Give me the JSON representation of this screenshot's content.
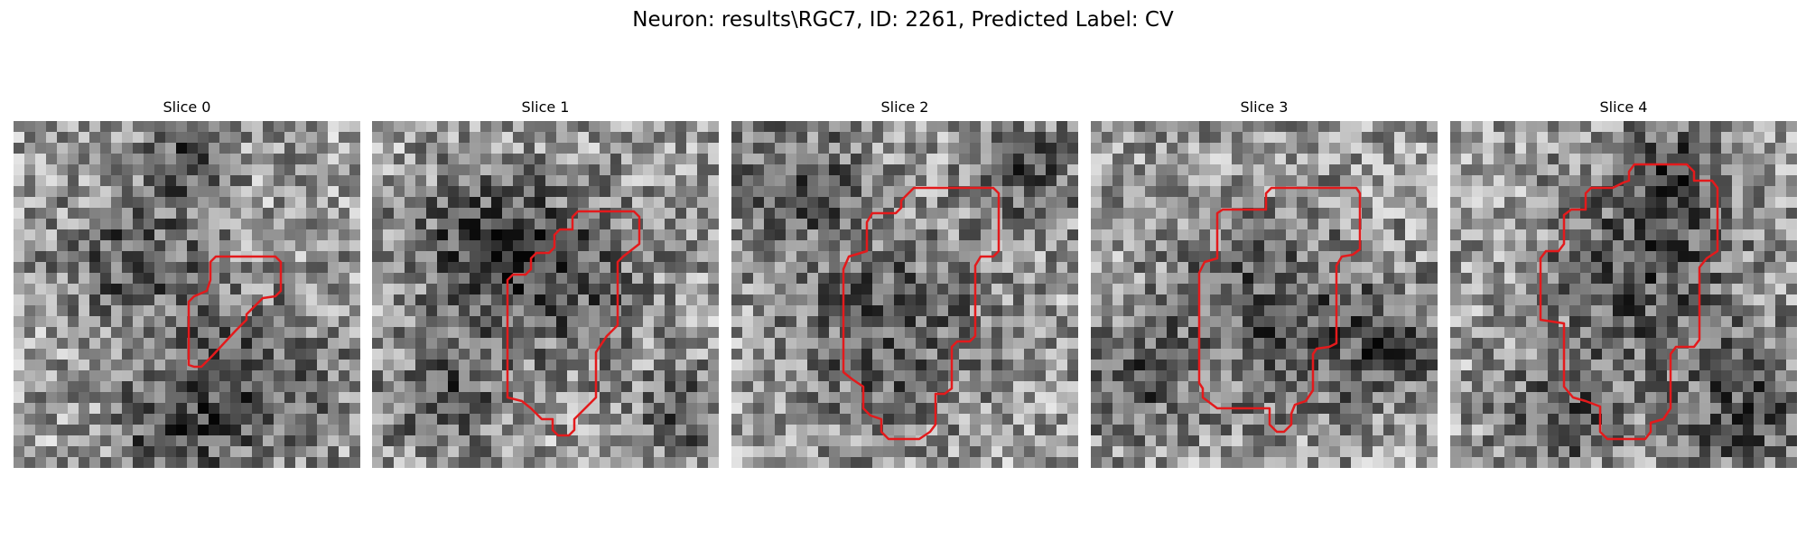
{
  "figure": {
    "title": "Neuron: results\\RGC7, ID: 2261, Predicted Label: CV"
  },
  "panels": [
    {
      "title": "Slice 0",
      "seed": 11,
      "dark": [
        [
          0.35,
          0.4,
          0.25
        ],
        [
          0.5,
          0.1,
          0.15
        ],
        [
          0.7,
          0.75,
          0.3
        ],
        [
          0.45,
          0.9,
          0.2
        ]
      ]
    },
    {
      "title": "Slice 1",
      "seed": 23,
      "dark": [
        [
          0.3,
          0.35,
          0.25
        ],
        [
          0.55,
          0.45,
          0.3
        ],
        [
          0.2,
          0.8,
          0.2
        ],
        [
          0.9,
          0.85,
          0.15
        ]
      ]
    },
    {
      "title": "Slice 2",
      "seed": 37,
      "dark": [
        [
          0.18,
          0.18,
          0.22
        ],
        [
          0.45,
          0.6,
          0.35
        ],
        [
          0.85,
          0.15,
          0.2
        ]
      ]
    },
    {
      "title": "Slice 3",
      "seed": 49,
      "dark": [
        [
          0.5,
          0.55,
          0.35
        ],
        [
          0.85,
          0.65,
          0.2
        ],
        [
          0.1,
          0.75,
          0.2
        ]
      ]
    },
    {
      "title": "Slice 4",
      "seed": 61,
      "dark": [
        [
          0.55,
          0.45,
          0.35
        ],
        [
          0.85,
          0.85,
          0.25
        ],
        [
          0.3,
          0.85,
          0.2
        ],
        [
          0.65,
          0.15,
          0.2
        ]
      ]
    }
  ],
  "colors": {
    "contour": "#e31a1c"
  }
}
